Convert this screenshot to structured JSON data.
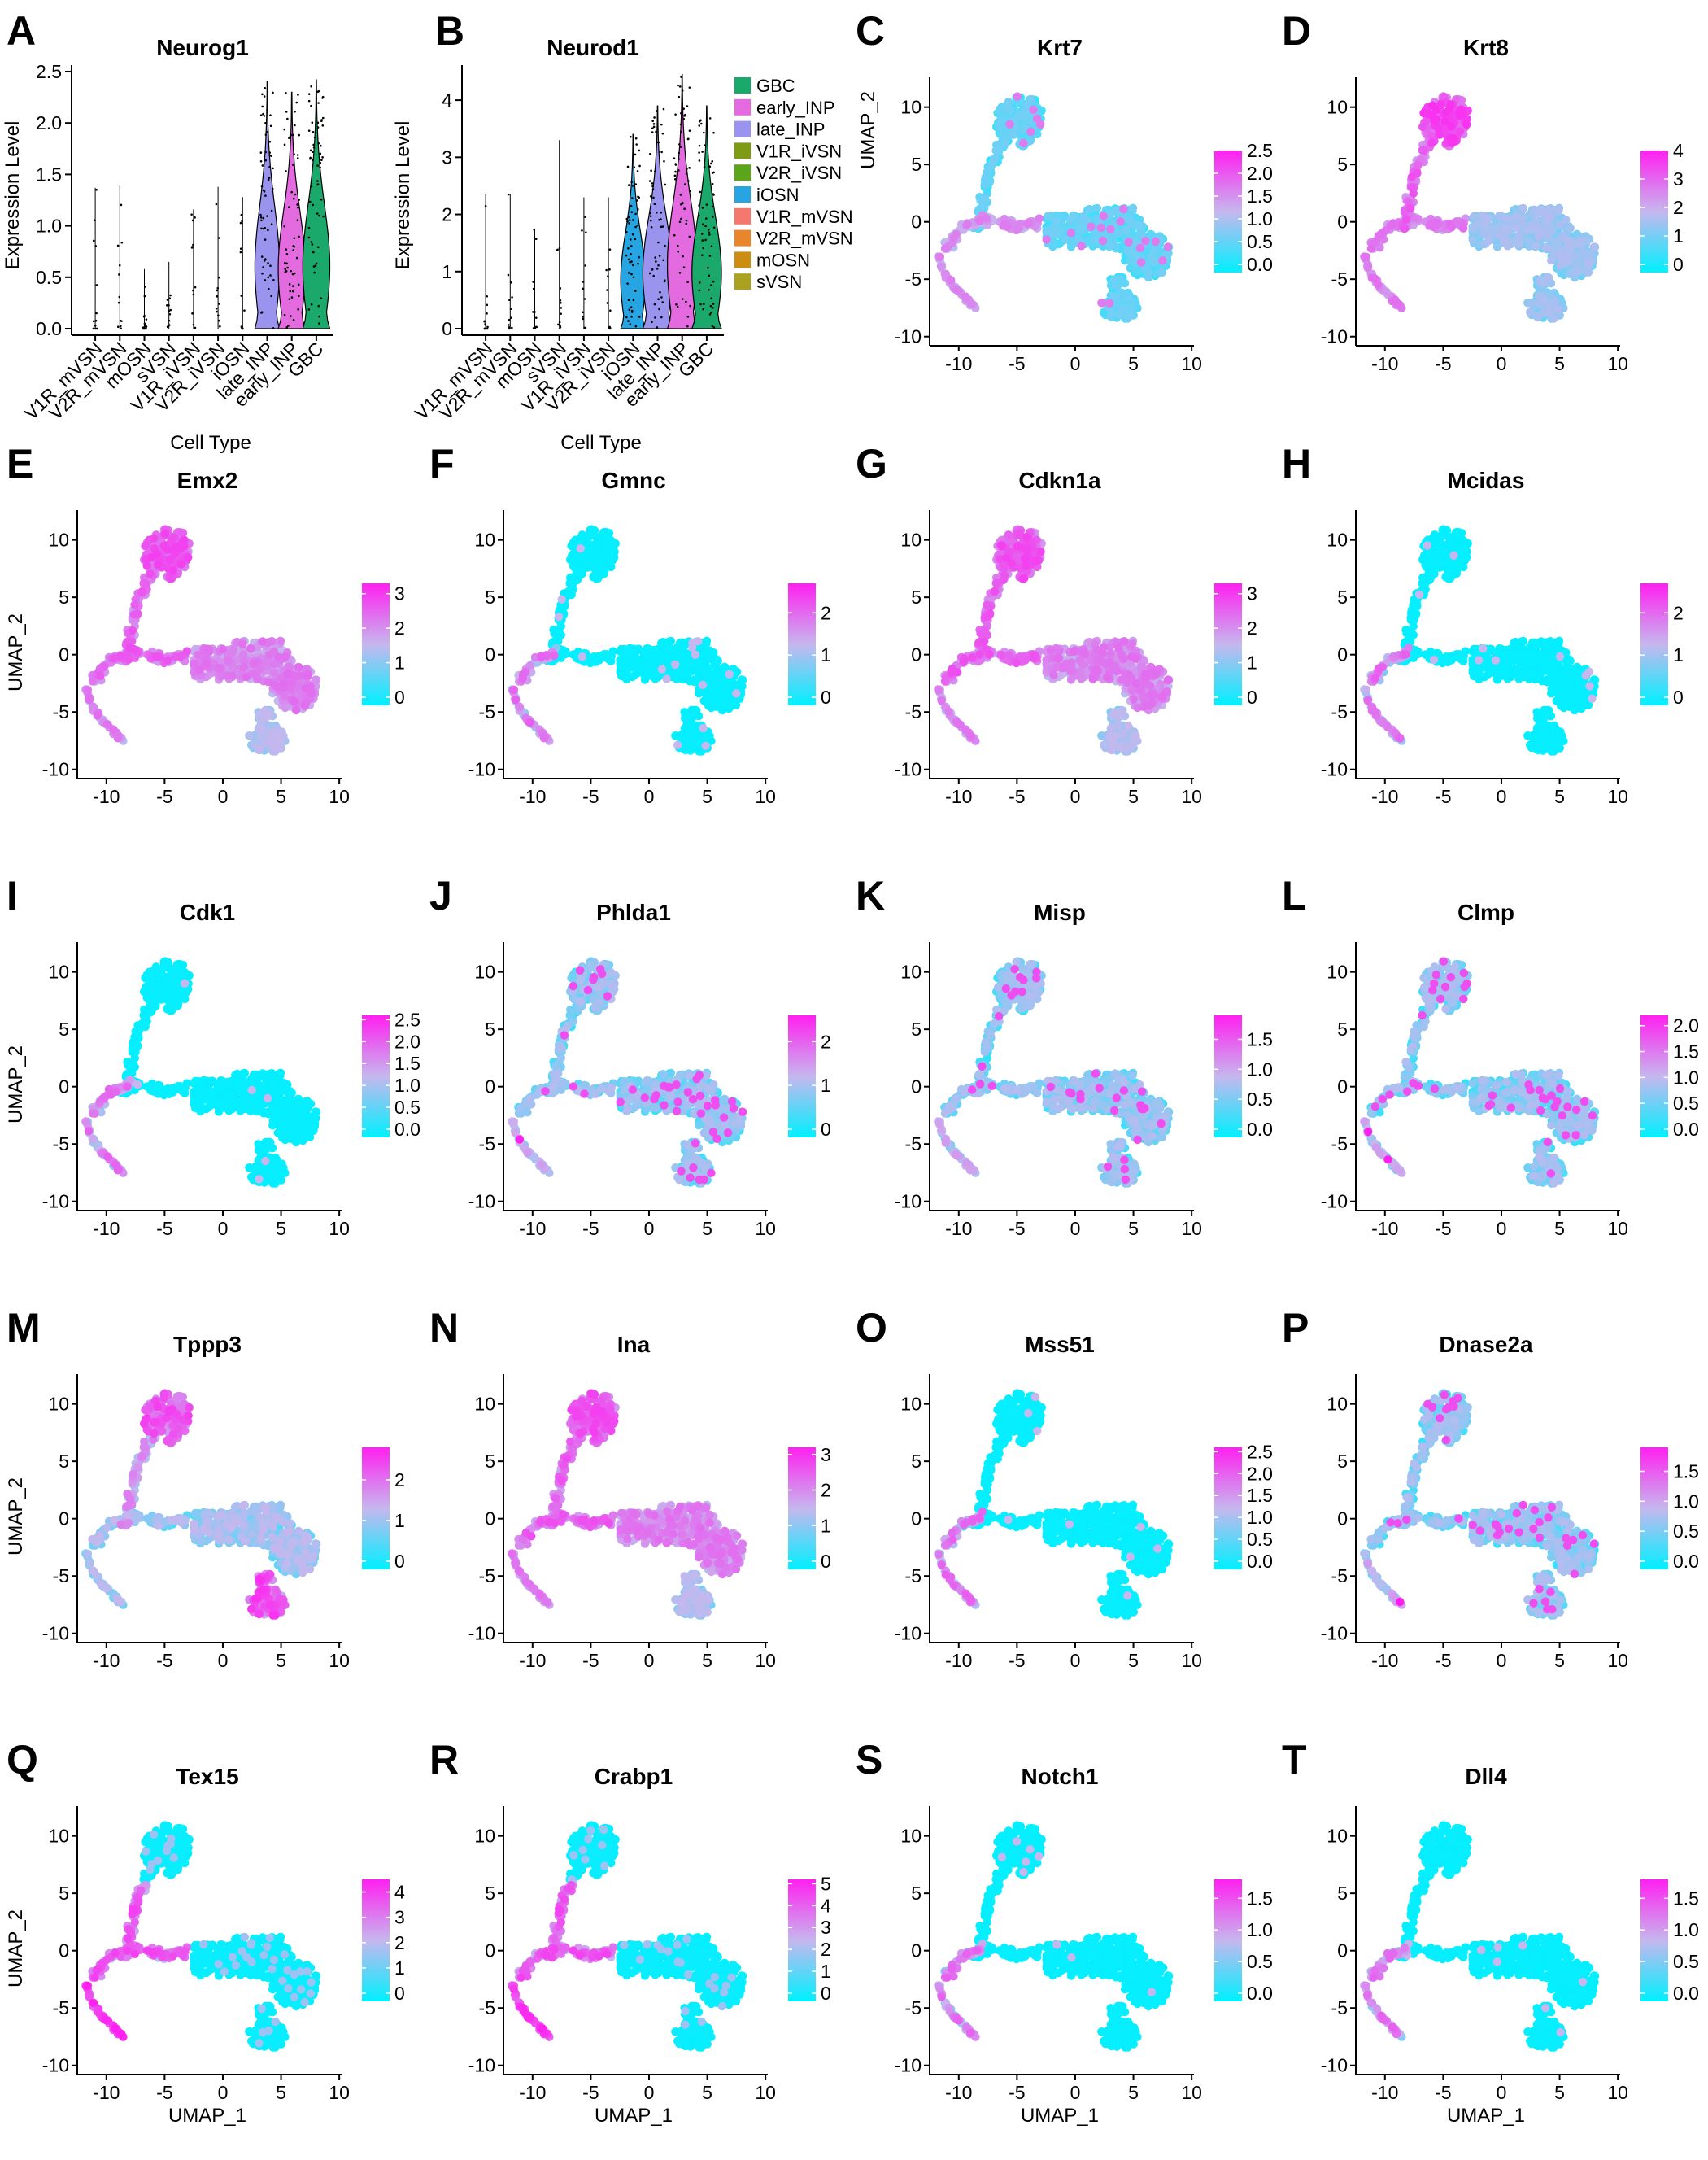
{
  "figure": {
    "violin_cell_types": [
      "V1R_mVSN",
      "V2R_mVSN",
      "mOSN",
      "sVSN",
      "V1R_iVSN",
      "V2R_iVSN",
      "iOSN",
      "late_INP",
      "early_INP",
      "GBC"
    ],
    "violin_colors": {
      "GBC": "#1aa86b",
      "early_INP": "#e46ae0",
      "late_INP": "#9b94ee",
      "V1R_iVSN": "#7f9a15",
      "V2R_iVSN": "#5aa51c",
      "iOSN": "#27a4e2",
      "V1R_mVSN": "#f4786e",
      "V2R_mVSN": "#e9852a",
      "mOSN": "#cc8d11",
      "sVSN": "#a9a11f"
    },
    "legend_order": [
      "GBC",
      "early_INP",
      "late_INP",
      "V1R_iVSN",
      "V2R_iVSN",
      "iOSN",
      "V1R_mVSN",
      "V2R_mVSN",
      "mOSN",
      "sVSN"
    ],
    "violin_ylabel": "Expression Level",
    "violin_xlabel": "Cell Type",
    "umap_xlabel": "UMAP_1",
    "umap_ylabel": "UMAP_2",
    "umap_xticks": [
      "-10",
      "-5",
      "0",
      "5",
      "10"
    ],
    "umap_yticks": [
      "10",
      "5",
      "0",
      "-5",
      "-10"
    ],
    "colorscale": {
      "low": "#00f0ff",
      "mid": "#c6b7ee",
      "high": "#ff20f0"
    }
  },
  "chart_data": [
    {
      "panel": "A",
      "type": "violin",
      "title": "Neurog1",
      "ylim": [
        0,
        2.5
      ],
      "yticks": [
        "0.0",
        "0.5",
        "1.0",
        "1.5",
        "2.0",
        "2.5"
      ],
      "categories": [
        "V1R_mVSN",
        "V2R_mVSN",
        "mOSN",
        "sVSN",
        "V1R_iVSN",
        "V2R_iVSN",
        "iOSN",
        "late_INP",
        "early_INP",
        "GBC"
      ],
      "max_values": [
        1.37,
        1.4,
        0.58,
        0.65,
        1.16,
        1.38,
        1.28,
        2.4,
        2.3,
        2.42
      ],
      "violin_width": [
        0,
        0,
        0,
        0,
        0,
        0,
        0,
        0.5,
        0.55,
        0.55
      ]
    },
    {
      "panel": "B",
      "type": "violin",
      "title": "Neurod1",
      "ylim": [
        0,
        4.5
      ],
      "yticks": [
        "0",
        "1",
        "2",
        "3",
        "4"
      ],
      "categories": [
        "V1R_mVSN",
        "V2R_mVSN",
        "mOSN",
        "sVSN",
        "V1R_iVSN",
        "V2R_iVSN",
        "iOSN",
        "late_INP",
        "early_INP",
        "GBC"
      ],
      "max_values": [
        2.35,
        2.35,
        1.75,
        3.3,
        2.3,
        2.3,
        3.4,
        3.9,
        4.45,
        3.9
      ],
      "violin_width": [
        0,
        0,
        0,
        0,
        0,
        0,
        0.5,
        0.6,
        0.6,
        0.6
      ]
    },
    {
      "panel": "C",
      "type": "scatter",
      "title": "Krt7",
      "legend_ticks": [
        "2.5",
        "2.0",
        "1.5",
        "1.0",
        "0.5",
        "0.0"
      ],
      "max": 2.5,
      "pattern": "weak-left"
    },
    {
      "panel": "D",
      "type": "scatter",
      "title": "Krt8",
      "legend_ticks": [
        "4",
        "3",
        "2",
        "1",
        "0"
      ],
      "max": 4,
      "pattern": "top-high"
    },
    {
      "panel": "E",
      "type": "scatter",
      "title": "Emx2",
      "legend_ticks": [
        "3",
        "2",
        "1",
        "0"
      ],
      "max": 3.3,
      "pattern": "broad"
    },
    {
      "panel": "F",
      "type": "scatter",
      "title": "Gmnc",
      "legend_ticks": [
        "2",
        "1",
        "0"
      ],
      "max": 2.7,
      "pattern": "left-only"
    },
    {
      "panel": "G",
      "type": "scatter",
      "title": "Cdkn1a",
      "legend_ticks": [
        "3",
        "2",
        "1",
        "0"
      ],
      "max": 3.3,
      "pattern": "broad"
    },
    {
      "panel": "H",
      "type": "scatter",
      "title": "Mcidas",
      "legend_ticks": [
        "2",
        "1",
        "0"
      ],
      "max": 2.7,
      "pattern": "left-only"
    },
    {
      "panel": "I",
      "type": "scatter",
      "title": "Cdk1",
      "legend_ticks": [
        "2.5",
        "2.0",
        "1.5",
        "1.0",
        "0.5",
        "0.0"
      ],
      "max": 2.6,
      "pattern": "left-only"
    },
    {
      "panel": "J",
      "type": "scatter",
      "title": "Phlda1",
      "legend_ticks": [
        "2",
        "1",
        "0"
      ],
      "max": 2.6,
      "pattern": "scattered"
    },
    {
      "panel": "K",
      "type": "scatter",
      "title": "Misp",
      "legend_ticks": [
        "1.5",
        "1.0",
        "0.5",
        "0.0"
      ],
      "max": 1.9,
      "pattern": "scattered"
    },
    {
      "panel": "L",
      "type": "scatter",
      "title": "Clmp",
      "legend_ticks": [
        "2.0",
        "1.5",
        "1.0",
        "0.5",
        "0.0"
      ],
      "max": 2.2,
      "pattern": "scattered"
    },
    {
      "panel": "M",
      "type": "scatter",
      "title": "Tppp3",
      "legend_ticks": [
        "2",
        "1",
        "0"
      ],
      "max": 2.8,
      "pattern": "top-bottomright"
    },
    {
      "panel": "N",
      "type": "scatter",
      "title": "Ina",
      "legend_ticks": [
        "3",
        "2",
        "1",
        "0"
      ],
      "max": 3.2,
      "pattern": "broad"
    },
    {
      "panel": "O",
      "type": "scatter",
      "title": "Mss51",
      "legend_ticks": [
        "2.5",
        "2.0",
        "1.5",
        "1.0",
        "0.5",
        "0.0"
      ],
      "max": 2.6,
      "pattern": "left-only"
    },
    {
      "panel": "P",
      "type": "scatter",
      "title": "Dnase2a",
      "legend_ticks": [
        "1.5",
        "1.0",
        "0.5",
        "0.0"
      ],
      "max": 1.9,
      "pattern": "scattered"
    },
    {
      "panel": "Q",
      "type": "scatter",
      "title": "Tex15",
      "legend_ticks": [
        "4",
        "3",
        "2",
        "1",
        "0"
      ],
      "max": 4.5,
      "pattern": "left-strong"
    },
    {
      "panel": "R",
      "type": "scatter",
      "title": "Crabp1",
      "legend_ticks": [
        "5",
        "4",
        "3",
        "2",
        "1",
        "0"
      ],
      "max": 5.2,
      "pattern": "left-strong"
    },
    {
      "panel": "S",
      "type": "scatter",
      "title": "Notch1",
      "legend_ticks": [
        "1.5",
        "1.0",
        "0.5",
        "0.0"
      ],
      "max": 1.8,
      "pattern": "left-only"
    },
    {
      "panel": "T",
      "type": "scatter",
      "title": "Dll4",
      "legend_ticks": [
        "1.5",
        "1.0",
        "0.5",
        "0.0"
      ],
      "max": 1.8,
      "pattern": "left-only"
    }
  ]
}
